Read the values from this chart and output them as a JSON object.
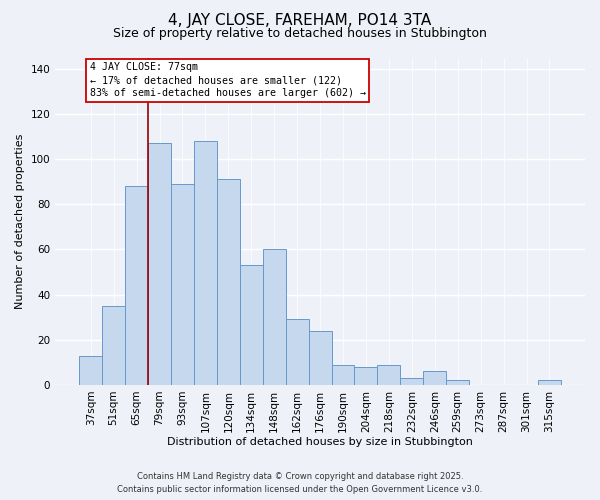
{
  "title": "4, JAY CLOSE, FAREHAM, PO14 3TA",
  "subtitle": "Size of property relative to detached houses in Stubbington",
  "xlabel": "Distribution of detached houses by size in Stubbington",
  "ylabel": "Number of detached properties",
  "bar_labels": [
    "37sqm",
    "51sqm",
    "65sqm",
    "79sqm",
    "93sqm",
    "107sqm",
    "120sqm",
    "134sqm",
    "148sqm",
    "162sqm",
    "176sqm",
    "190sqm",
    "204sqm",
    "218sqm",
    "232sqm",
    "246sqm",
    "259sqm",
    "273sqm",
    "287sqm",
    "301sqm",
    "315sqm"
  ],
  "bar_values": [
    13,
    35,
    88,
    107,
    89,
    108,
    91,
    53,
    60,
    29,
    24,
    9,
    8,
    9,
    3,
    6,
    2,
    0,
    0,
    0,
    2
  ],
  "bar_color": "#c5d8ee",
  "bar_edge_color": "#6699cc",
  "ylim": [
    0,
    145
  ],
  "yticks": [
    0,
    20,
    40,
    60,
    80,
    100,
    120,
    140
  ],
  "vline_index": 3,
  "vline_color": "#990000",
  "annotation_title": "4 JAY CLOSE: 77sqm",
  "annotation_line1": "← 17% of detached houses are smaller (122)",
  "annotation_line2": "83% of semi-detached houses are larger (602) →",
  "annotation_box_facecolor": "#ffffff",
  "annotation_box_edgecolor": "#cc0000",
  "footer_line1": "Contains HM Land Registry data © Crown copyright and database right 2025.",
  "footer_line2": "Contains public sector information licensed under the Open Government Licence v3.0.",
  "background_color": "#eef2f8",
  "grid_color": "#ffffff",
  "title_fontsize": 11,
  "subtitle_fontsize": 9,
  "axis_label_fontsize": 8,
  "tick_fontsize": 7.5
}
